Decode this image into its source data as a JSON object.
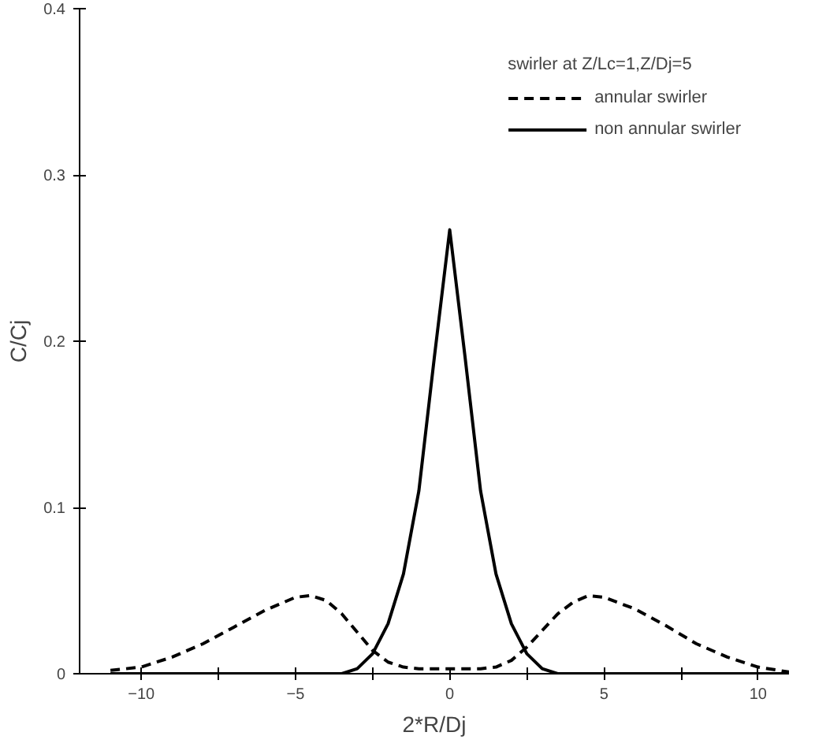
{
  "chart_data": {
    "type": "line",
    "xlabel": "2*R/Dj",
    "ylabel": "C/Cj",
    "legend_title": "swirler at Z/Lc=1,Z/Dj=5",
    "legend": "top right",
    "grid": false,
    "marker": "none",
    "xlim": [
      -12,
      11
    ],
    "ylim": [
      0,
      0.4
    ],
    "xticks": [
      -10,
      {
        "value": -7.5,
        "label": null
      },
      -5,
      {
        "value": -2.5,
        "label": null
      },
      0,
      {
        "value": 2.5,
        "label": null
      },
      5,
      {
        "value": 7.5,
        "label": null
      },
      10
    ],
    "yticks": [
      0,
      0.1,
      0.2,
      0.3,
      0.4
    ],
    "series": [
      {
        "name": "annular swirler",
        "color": "#000000",
        "line_style": "dashed",
        "x": [
          -11,
          -10,
          -9,
          -8,
          -7,
          -6,
          -5,
          -4.5,
          -4,
          -3.5,
          -3,
          -2.5,
          -2,
          -1.5,
          -1,
          0,
          1,
          1.5,
          2,
          2.5,
          3,
          3.5,
          4,
          4.5,
          5,
          6,
          7,
          8,
          9,
          10,
          11
        ],
        "values": [
          0.002,
          0.004,
          0.01,
          0.018,
          0.028,
          0.038,
          0.046,
          0.047,
          0.044,
          0.036,
          0.025,
          0.014,
          0.007,
          0.004,
          0.003,
          0.003,
          0.003,
          0.004,
          0.008,
          0.016,
          0.026,
          0.036,
          0.043,
          0.047,
          0.046,
          0.039,
          0.029,
          0.018,
          0.01,
          0.004,
          0.001
        ]
      },
      {
        "name": "non annular swirler",
        "color": "#000000",
        "line_style": "solid",
        "x": [
          -11,
          -3.5,
          -3,
          -2.5,
          -2,
          -1.5,
          -1,
          -0.5,
          0,
          0.5,
          1,
          1.5,
          2,
          2.5,
          3,
          3.5,
          11
        ],
        "values": [
          0,
          0,
          0.003,
          0.012,
          0.03,
          0.06,
          0.11,
          0.19,
          0.267,
          0.19,
          0.11,
          0.06,
          0.03,
          0.012,
          0.003,
          0,
          0
        ]
      }
    ]
  }
}
